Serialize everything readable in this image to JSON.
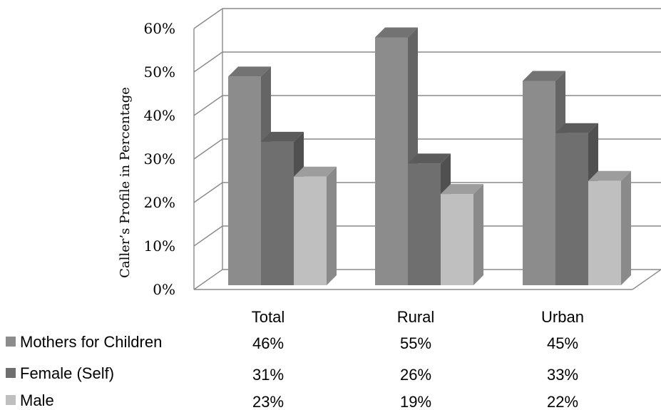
{
  "chart_data": {
    "type": "bar",
    "ylabel": "Caller’s Profile in Percentage",
    "ylim": [
      0,
      60
    ],
    "yticks": [
      "0%",
      "10%",
      "20%",
      "30%",
      "40%",
      "50%",
      "60%"
    ],
    "categories": [
      "Total",
      "Rural",
      "Urban"
    ],
    "series": [
      {
        "name": "Mothers for Children",
        "values": [
          46,
          55,
          45
        ],
        "labels": [
          "46%",
          "55%",
          "45%"
        ],
        "color": "#8c8c8c"
      },
      {
        "name": "Female (Self)",
        "values": [
          31,
          26,
          33
        ],
        "labels": [
          "31%",
          "26%",
          "33%"
        ],
        "color": "#6f6f6f"
      },
      {
        "name": "Male",
        "values": [
          23,
          19,
          22
        ],
        "labels": [
          "23%",
          "19%",
          "22%"
        ],
        "color": "#bfbfbf"
      }
    ],
    "grid": true,
    "legend": "bottom-left data table",
    "style": "3d-clustered-column"
  }
}
